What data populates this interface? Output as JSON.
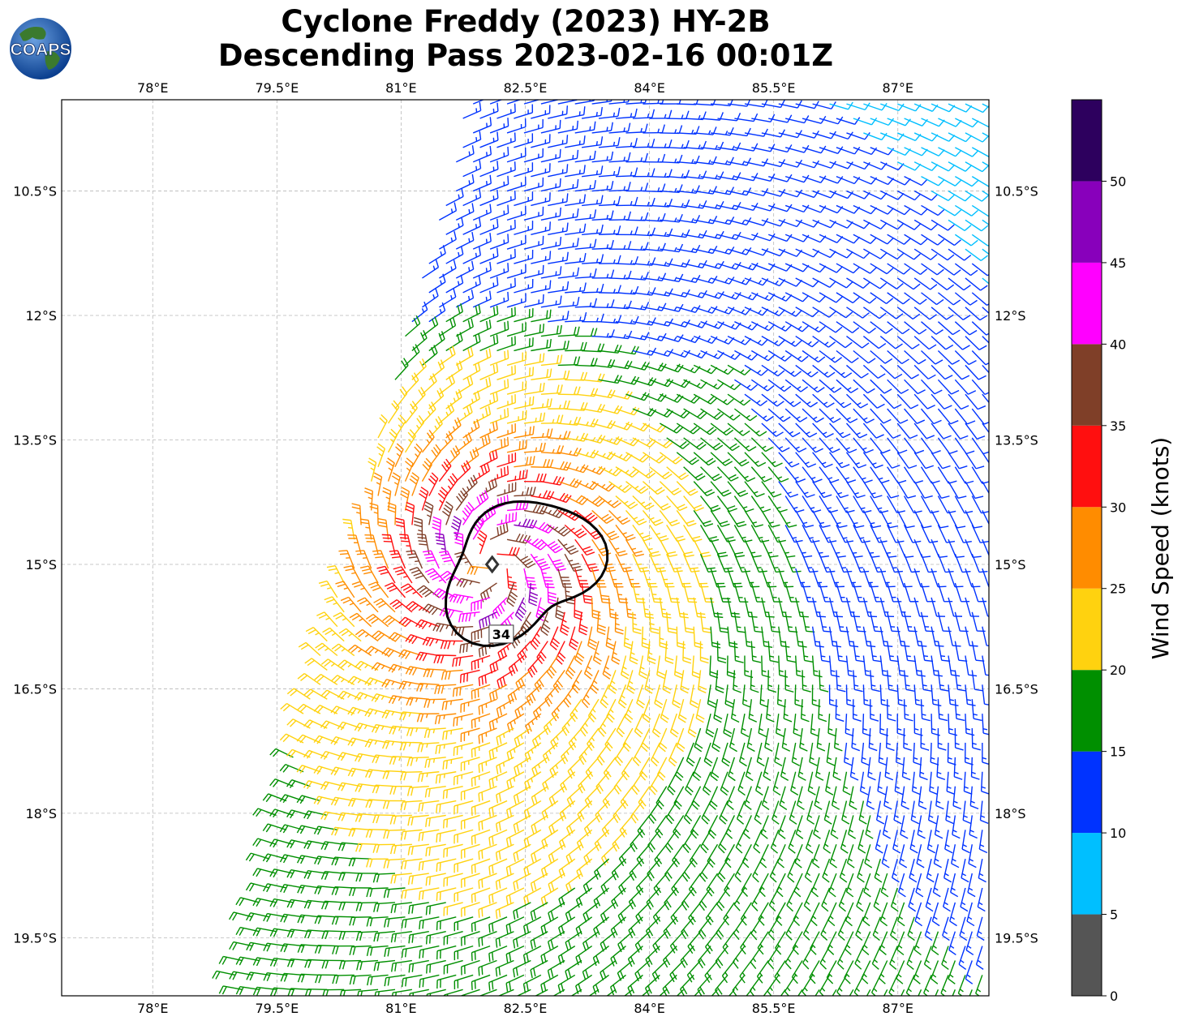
{
  "title": {
    "line1": "Cyclone Freddy (2023) HY-2B",
    "line2": "Descending Pass 2023-02-16 00:01Z"
  },
  "logo": {
    "text": "COAPS"
  },
  "map": {
    "lon_range": [
      76.9,
      88.1
    ],
    "lat_range": [
      -20.2,
      -9.4
    ],
    "lon_ticks": [
      "78°E",
      "79.5°E",
      "81°E",
      "82.5°E",
      "84°E",
      "85.5°E",
      "87°E"
    ],
    "lon_tick_values": [
      78,
      79.5,
      81,
      82.5,
      84,
      85.5,
      87
    ],
    "lat_ticks": [
      "10.5°S",
      "12°S",
      "13.5°S",
      "15°S",
      "16.5°S",
      "18°S",
      "19.5°S"
    ],
    "lat_tick_values": [
      -10.5,
      -12,
      -13.5,
      -15,
      -16.5,
      -18,
      -19.5
    ],
    "gridlines": true,
    "storm_center": {
      "lon": 82.1,
      "lat": -15.0
    },
    "contour_label": "34",
    "contour_value_knots": 34,
    "swath_left_edge": {
      "top_lon": 81.8,
      "bottom_lon": 78.9
    },
    "storm_radius_max_wind_deg": 0.55
  },
  "colorbar": {
    "label": "Wind Speed (knots)",
    "tick_labels": [
      "0",
      "5",
      "10",
      "15",
      "20",
      "25",
      "30",
      "35",
      "40",
      "45",
      "50"
    ],
    "bins": [
      {
        "min": 0,
        "max": 5,
        "color": "#555555"
      },
      {
        "min": 5,
        "max": 10,
        "color": "#00bfff"
      },
      {
        "min": 10,
        "max": 15,
        "color": "#0033ff"
      },
      {
        "min": 15,
        "max": 20,
        "color": "#008f00"
      },
      {
        "min": 20,
        "max": 25,
        "color": "#ffd20f"
      },
      {
        "min": 25,
        "max": 30,
        "color": "#ff8c00"
      },
      {
        "min": 30,
        "max": 35,
        "color": "#ff0f0f"
      },
      {
        "min": 35,
        "max": 40,
        "color": "#7f3f28"
      },
      {
        "min": 40,
        "max": 45,
        "color": "#ff00ff"
      },
      {
        "min": 45,
        "max": 50,
        "color": "#8800bb"
      },
      {
        "min": 50,
        "max": 55,
        "color": "#2d005e"
      }
    ]
  }
}
